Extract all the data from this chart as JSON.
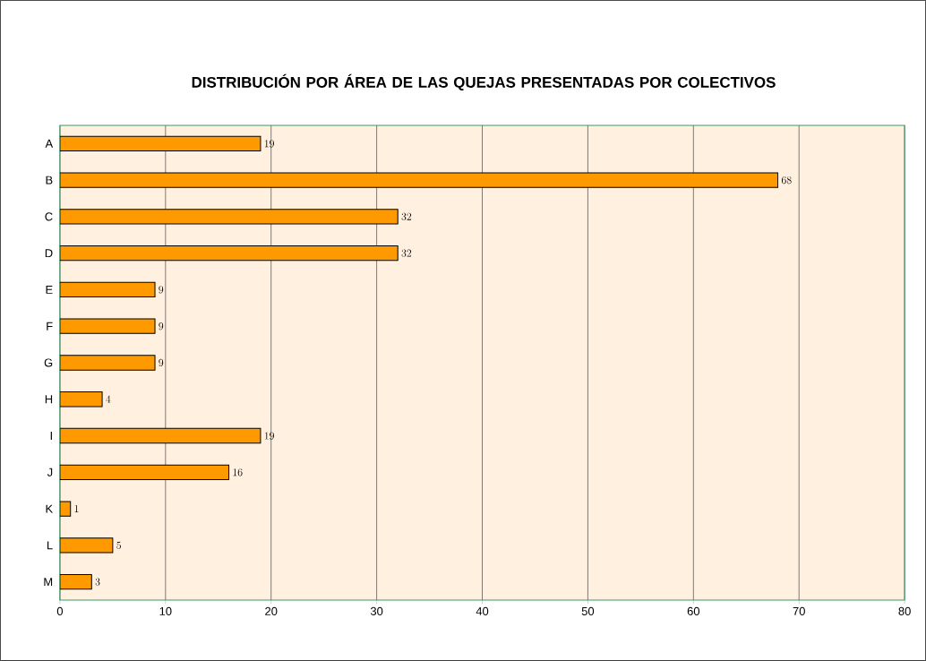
{
  "chart_data": {
    "type": "bar",
    "orientation": "horizontal",
    "title": "DISTRIBUCIÓN POR ÁREA DE LAS QUEJAS PRESENTADAS POR COLECTIVOS",
    "categories": [
      "A",
      "B",
      "C",
      "D",
      "E",
      "F",
      "G",
      "H",
      "I",
      "J",
      "K",
      "L",
      "M"
    ],
    "values": [
      19,
      68,
      32,
      32,
      9,
      9,
      9,
      4,
      19,
      16,
      1,
      5,
      3
    ],
    "color": "#ff9900",
    "xlim": [
      0,
      80
    ],
    "xticks": [
      0,
      10,
      20,
      30,
      40,
      50,
      60,
      70,
      80
    ],
    "grid": "x",
    "data_labels": true
  }
}
